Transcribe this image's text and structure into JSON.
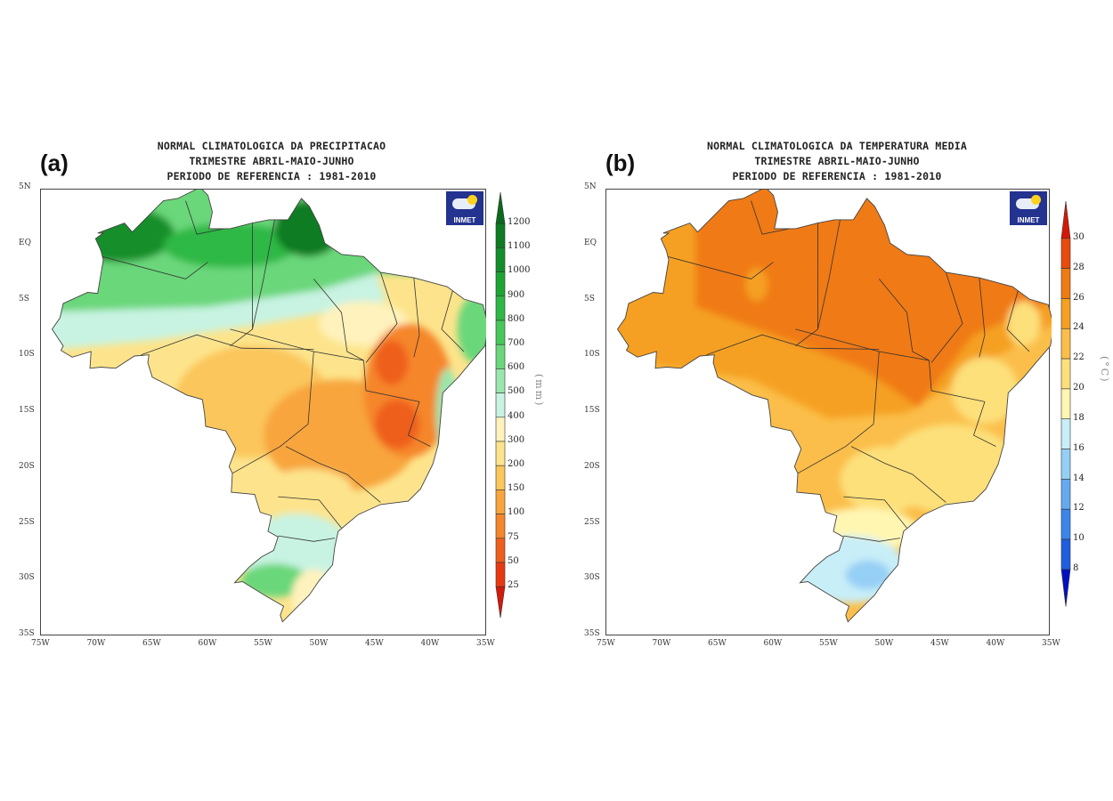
{
  "panels": [
    {
      "label": "(a)",
      "title": [
        "NORMAL CLIMATOLOGICA DA PRECIPITACAO",
        "TRIMESTRE ABRIL-MAIO-JUNHO",
        "PERIODO DE REFERENCIA : 1981-2010"
      ],
      "logo": "INMET",
      "units": "(mm)",
      "colorbar": {
        "ticks": [
          "1200",
          "1100",
          "1000",
          "900",
          "800",
          "700",
          "600",
          "500",
          "400",
          "300",
          "200",
          "150",
          "100",
          "75",
          "50",
          "25"
        ],
        "colors_high_to_low": [
          "#0a6a1c",
          "#0e7c22",
          "#128f2a",
          "#1ca533",
          "#2eb845",
          "#48c85a",
          "#6ad77a",
          "#9ae6ac",
          "#c8f3e2",
          "#fff2bc",
          "#fde48c",
          "#fbc65c",
          "#f8a53c",
          "#f5862a",
          "#ef5f1c",
          "#e83a12",
          "#d41a0a"
        ]
      },
      "field": {
        "bins": [
          25,
          50,
          75,
          100,
          150,
          200,
          300,
          400,
          500,
          600,
          700,
          800,
          900,
          1000,
          1100,
          1200
        ],
        "base_value": 250,
        "polygons": [
          {
            "value": 450,
            "points": [
              [
                -76,
                -4
              ],
              [
                -55,
                -3.5
              ],
              [
                -45,
                -2
              ],
              [
                -44,
                -5
              ],
              [
                -55,
                -7
              ],
              [
                -65,
                -8.5
              ],
              [
                -76,
                -9.5
              ]
            ]
          },
          {
            "value": 650,
            "points": [
              [
                -76,
                6
              ],
              [
                -33,
                6
              ],
              [
                -33,
                -3
              ],
              [
                -45,
                -2.5
              ],
              [
                -50,
                -4
              ],
              [
                -60,
                -5.5
              ],
              [
                -76,
                -6
              ]
            ]
          }
        ],
        "ellipses": [
          {
            "value": 1000,
            "center": [
              -68,
              1
            ],
            "radius": [
              5,
              2.5
            ]
          },
          {
            "value": 850,
            "center": [
              -58,
              0
            ],
            "radius": [
              6,
              2
            ]
          },
          {
            "value": 1150,
            "center": [
              -51,
              1.5
            ],
            "radius": [
              3,
              2.5
            ]
          },
          {
            "value": 350,
            "center": [
              -46,
              -7
            ],
            "radius": [
              4,
              2
            ]
          },
          {
            "value": 150,
            "center": [
              -56,
              -14
            ],
            "radius": [
              7,
              5
            ]
          },
          {
            "value": 120,
            "center": [
              -48,
              -17
            ],
            "radius": [
              7,
              5
            ]
          },
          {
            "value": 90,
            "center": [
              -42,
              -13
            ],
            "radius": [
              4,
              6
            ]
          },
          {
            "value": 60,
            "center": [
              -43,
              -16
            ],
            "radius": [
              2,
              2.2
            ]
          },
          {
            "value": 60,
            "center": [
              -43.5,
              -10.5
            ],
            "radius": [
              1.5,
              2
            ]
          },
          {
            "value": 250,
            "center": [
              -51,
              -22
            ],
            "radius": [
              4,
              2
            ]
          },
          {
            "value": 650,
            "center": [
              -36,
              -7.5
            ],
            "radius": [
              1.6,
              3
            ]
          },
          {
            "value": 550,
            "center": [
              -38.5,
              -15
            ],
            "radius": [
              1,
              4
            ]
          },
          {
            "value": 450,
            "center": [
              -52,
              -27.5
            ],
            "radius": [
              5,
              3.5
            ]
          },
          {
            "value": 650,
            "center": [
              -54,
              -30
            ],
            "radius": [
              3,
              1.5
            ]
          },
          {
            "value": 300,
            "center": [
              -50.5,
              -31.5
            ],
            "radius": [
              2,
              2.5
            ]
          }
        ]
      }
    },
    {
      "label": "(b)",
      "title": [
        "NORMAL CLIMATOLOGICA DA TEMPERATURA MEDIA",
        "TRIMESTRE ABRIL-MAIO-JUNHO",
        "PERIODO DE REFERENCIA : 1981-2010"
      ],
      "logo": "INMET",
      "units": "(°C)",
      "colorbar": {
        "ticks": [
          "30",
          "28",
          "26",
          "24",
          "22",
          "20",
          "18",
          "16",
          "14",
          "12",
          "10",
          "8"
        ],
        "colors_high_to_low": [
          "#d41808",
          "#ea4a0c",
          "#f07a14",
          "#f5a020",
          "#fbbe4a",
          "#fde07a",
          "#fff6b2",
          "#c8eef8",
          "#96cff5",
          "#64aaf0",
          "#3a86ea",
          "#1e5ee0",
          "#0010c0"
        ]
      },
      "field": {
        "bins": [
          8,
          10,
          12,
          14,
          16,
          18,
          20,
          22,
          24,
          26,
          28,
          30
        ],
        "base_value": 23,
        "polygons": [
          {
            "value": 25,
            "points": [
              [
                -76,
                6
              ],
              [
                -33,
                6
              ],
              [
                -33,
                -6
              ],
              [
                -40,
                -10
              ],
              [
                -48,
                -15
              ],
              [
                -55,
                -15.5
              ],
              [
                -62,
                -12
              ],
              [
                -76,
                -10
              ]
            ]
          },
          {
            "value": 27,
            "points": [
              [
                -67,
                5
              ],
              [
                -50,
                6
              ],
              [
                -40,
                -2
              ],
              [
                -35,
                -5
              ],
              [
                -42,
                -8
              ],
              [
                -47,
                -14.5
              ],
              [
                -52,
                -11
              ],
              [
                -60,
                -8
              ],
              [
                -67,
                -5.5
              ]
            ]
          }
        ],
        "ellipses": [
          {
            "value": 25,
            "center": [
              -61.5,
              -3.5
            ],
            "radius": [
              1,
              1.5
            ]
          },
          {
            "value": 21,
            "center": [
              -44,
              -20
            ],
            "radius": [
              6,
              4
            ]
          },
          {
            "value": 21,
            "center": [
              -41,
              -13
            ],
            "radius": [
              3,
              3
            ]
          },
          {
            "value": 21,
            "center": [
              -50,
              -21
            ],
            "radius": [
              4,
              3
            ]
          },
          {
            "value": 21,
            "center": [
              -37.5,
              -7
            ],
            "radius": [
              1.5,
              2
            ]
          },
          {
            "value": 19,
            "center": [
              -52,
              -25.5
            ],
            "radius": [
              5,
              2
            ]
          },
          {
            "value": 17,
            "center": [
              -53,
              -29
            ],
            "radius": [
              5,
              3
            ]
          },
          {
            "value": 15,
            "center": [
              -51.5,
              -29.5
            ],
            "radius": [
              2,
              1.3
            ]
          }
        ]
      }
    }
  ],
  "axes": {
    "x_ticks": [
      {
        "value": -75,
        "label": "75W"
      },
      {
        "value": -70,
        "label": "70W"
      },
      {
        "value": -65,
        "label": "65W"
      },
      {
        "value": -60,
        "label": "60W"
      },
      {
        "value": -55,
        "label": "55W"
      },
      {
        "value": -50,
        "label": "50W"
      },
      {
        "value": -45,
        "label": "45W"
      },
      {
        "value": -40,
        "label": "40W"
      },
      {
        "value": -35,
        "label": "35W"
      }
    ],
    "y_ticks": [
      {
        "value": 5,
        "label": "5N"
      },
      {
        "value": 0,
        "label": "EQ"
      },
      {
        "value": -5,
        "label": "5S"
      },
      {
        "value": -10,
        "label": "10S"
      },
      {
        "value": -15,
        "label": "15S"
      },
      {
        "value": -20,
        "label": "20S"
      },
      {
        "value": -25,
        "label": "25S"
      },
      {
        "value": -30,
        "label": "30S"
      },
      {
        "value": -35,
        "label": "35S"
      }
    ],
    "lon_range": [
      -75,
      -35
    ],
    "lat_range": [
      -35,
      5
    ]
  }
}
